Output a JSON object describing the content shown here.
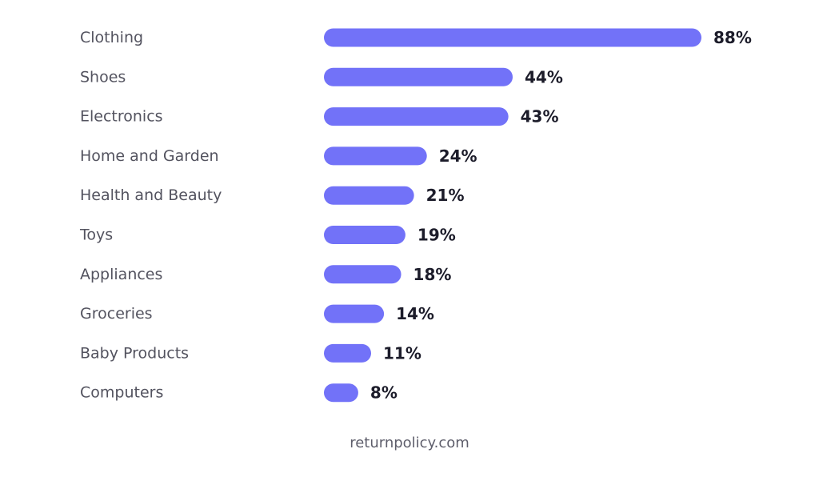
{
  "chart_data": {
    "type": "bar",
    "orientation": "horizontal",
    "categories": [
      "Clothing",
      "Shoes",
      "Electronics",
      "Home and Garden",
      "Health and Beauty",
      "Toys",
      "Appliances",
      "Groceries",
      "Baby Products",
      "Computers"
    ],
    "values": [
      88,
      44,
      43,
      24,
      21,
      19,
      18,
      14,
      11,
      8
    ],
    "value_labels": [
      "88%",
      "44%",
      "43%",
      "24%",
      "21%",
      "19%",
      "18%",
      "14%",
      "11%",
      "8%"
    ],
    "bar_color": "#7272f8",
    "xlim": [
      0,
      88
    ],
    "grid": false,
    "legend": "none"
  },
  "source": "returnpolicy.com"
}
